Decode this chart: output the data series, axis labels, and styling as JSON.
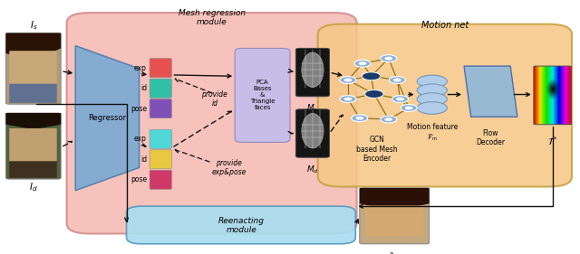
{
  "fig_width": 6.4,
  "fig_height": 2.81,
  "dpi": 100,
  "pink_color": "#f5b8b0",
  "orange_color": "#f5c888",
  "blue_reenact_color": "#a8ddf0",
  "regressor_color": "#7baad4",
  "pca_color": "#c8bce8",
  "motion_feat_color": "#b0cce8",
  "flow_dec_color": "#90b8d8",
  "gcn_node_fill": "#8ab0d8",
  "gcn_node_dark": "#1a3a6a",
  "gcn_node_hollow": "#d0e0f0",
  "gcn_edge_color": "#8B7014",
  "bar_colors_top": [
    "#e85050",
    "#30c0a8",
    "#8050b8"
  ],
  "bar_colors_bot": [
    "#50d8d8",
    "#e8c840",
    "#d03868"
  ],
  "top_labels": [
    "exp",
    "id",
    "pose"
  ],
  "bot_labels": [
    "exp",
    "id",
    "pose"
  ],
  "arrow_color": "#111111"
}
